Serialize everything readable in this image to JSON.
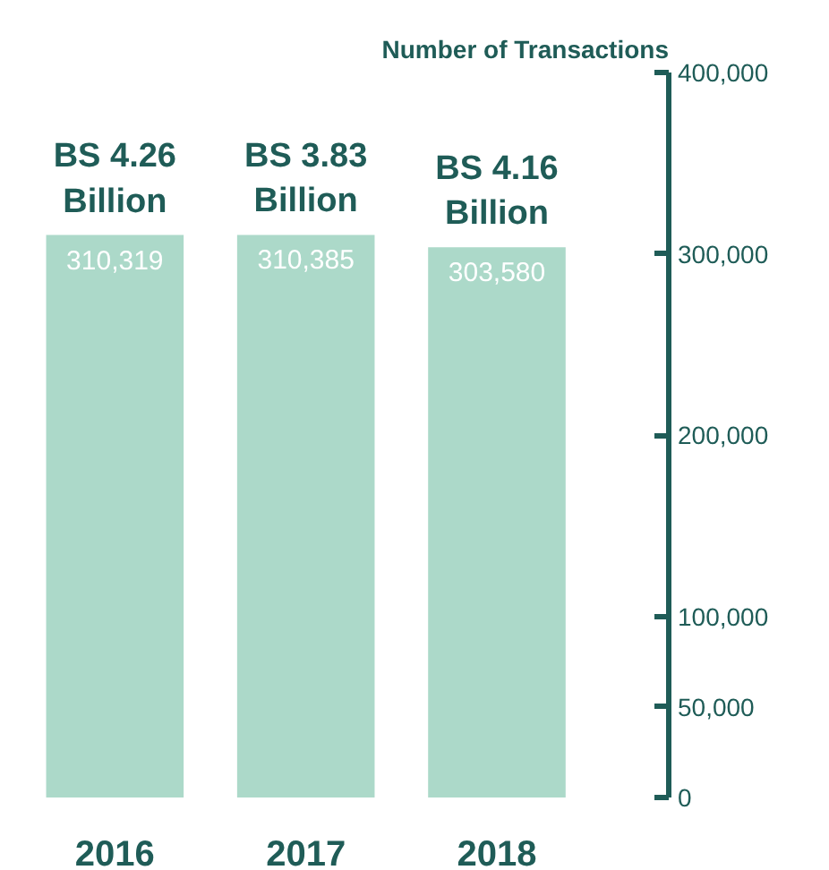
{
  "chart_data": {
    "type": "bar",
    "ylabel": "Number of Transactions",
    "categories": [
      "2016",
      "2017",
      "2018"
    ],
    "values": [
      310319,
      310385,
      303580
    ],
    "color": "#acd9c9",
    "value_labels": [
      "310,319",
      "310,385",
      "303,580"
    ],
    "grid": false,
    "ylim": [
      0,
      400000
    ],
    "yticks": [
      0,
      {
        "value": 50000,
        "label": "50,000"
      },
      {
        "value": 100000,
        "label": "100,000"
      },
      {
        "value": 200000,
        "label": "200,000"
      },
      {
        "value": 300000,
        "label": "300,000"
      },
      {
        "value": 400000,
        "label": "400,000"
      }
    ],
    "annotations": [
      "BS 4.26\nBillion",
      "BS 3.83\nBillion",
      "BS 4.16\nBillion"
    ]
  }
}
